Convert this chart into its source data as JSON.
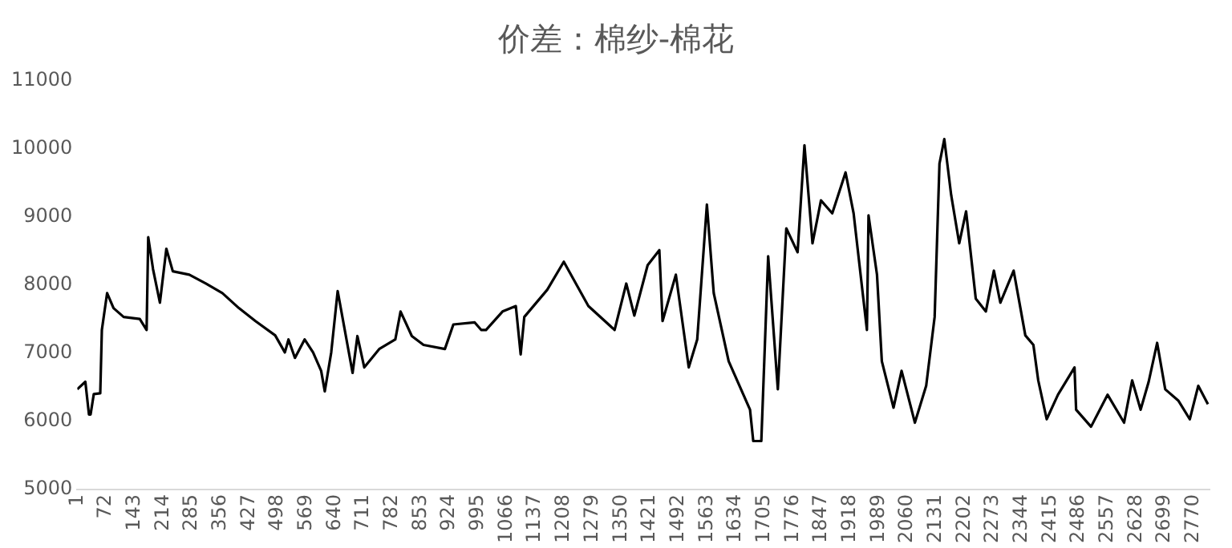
{
  "chart_data": {
    "type": "line",
    "title": "价差：棉纱-棉花",
    "x": [
      1,
      21,
      30,
      34,
      42,
      58,
      62,
      75,
      91,
      116,
      156,
      173,
      177,
      189,
      206,
      222,
      238,
      279,
      320,
      361,
      402,
      443,
      492,
      516,
      525,
      541,
      565,
      586,
      606,
      615,
      631,
      647,
      684,
      696,
      713,
      750,
      790,
      803,
      831,
      860,
      913,
      934,
      987,
      1003,
      1015,
      1056,
      1089,
      1101,
      1110,
      1167,
      1208,
      1269,
      1334,
      1363,
      1383,
      1416,
      1445,
      1453,
      1486,
      1518,
      1539,
      1563,
      1580,
      1617,
      1670,
      1678,
      1698,
      1715,
      1739,
      1760,
      1788,
      1805,
      1825,
      1846,
      1874,
      1907,
      1927,
      1948,
      1960,
      1964,
      1985,
      1997,
      2026,
      2046,
      2079,
      2107,
      2128,
      2140,
      2152,
      2169,
      2189,
      2206,
      2230,
      2255,
      2275,
      2291,
      2324,
      2353,
      2373,
      2385,
      2406,
      2434,
      2475,
      2479,
      2516,
      2557,
      2598,
      2618,
      2639,
      2659,
      2680,
      2700,
      2733,
      2761,
      2782,
      2806
    ],
    "series": [
      {
        "color": "#000000",
        "values": [
          6470,
          6580,
          6100,
          6100,
          6400,
          6410,
          7340,
          7880,
          7660,
          7530,
          7500,
          7340,
          8700,
          8230,
          7740,
          8530,
          8200,
          8150,
          8020,
          7880,
          7660,
          7470,
          7260,
          7010,
          7200,
          6930,
          7200,
          7010,
          6740,
          6440,
          7010,
          7910,
          6710,
          7250,
          6790,
          7060,
          7200,
          7610,
          7250,
          7120,
          7060,
          7420,
          7450,
          7340,
          7340,
          7610,
          7690,
          6980,
          7530,
          7930,
          8340,
          7690,
          7340,
          8020,
          7550,
          8290,
          8510,
          7470,
          8150,
          6790,
          7200,
          9180,
          7880,
          6880,
          6170,
          5710,
          5710,
          8420,
          6470,
          8830,
          8480,
          10050,
          8610,
          9240,
          9050,
          9650,
          9050,
          7960,
          7340,
          9020,
          8150,
          6880,
          6200,
          6740,
          5980,
          6520,
          7530,
          9780,
          10140,
          9320,
          8610,
          9080,
          7800,
          7610,
          8210,
          7740,
          8210,
          7260,
          7120,
          6600,
          6030,
          6390,
          6790,
          6170,
          5920,
          6390,
          5980,
          6600,
          6170,
          6580,
          7150,
          6470,
          6300,
          6030,
          6520,
          6250
        ]
      }
    ],
    "xlim": [
      1,
      2810
    ],
    "xticks": [
      1,
      72,
      143,
      214,
      285,
      356,
      427,
      498,
      569,
      640,
      711,
      782,
      853,
      924,
      995,
      1066,
      1137,
      1208,
      1279,
      1350,
      1421,
      1492,
      1563,
      1634,
      1705,
      1776,
      1847,
      1918,
      1989,
      2060,
      2131,
      2202,
      2273,
      2344,
      2415,
      2486,
      2557,
      2628,
      2699,
      2770
    ],
    "ylim": [
      5000,
      11000
    ],
    "yticks": [
      5000,
      6000,
      7000,
      8000,
      9000,
      10000,
      11000
    ],
    "grid": false,
    "legend": false
  }
}
